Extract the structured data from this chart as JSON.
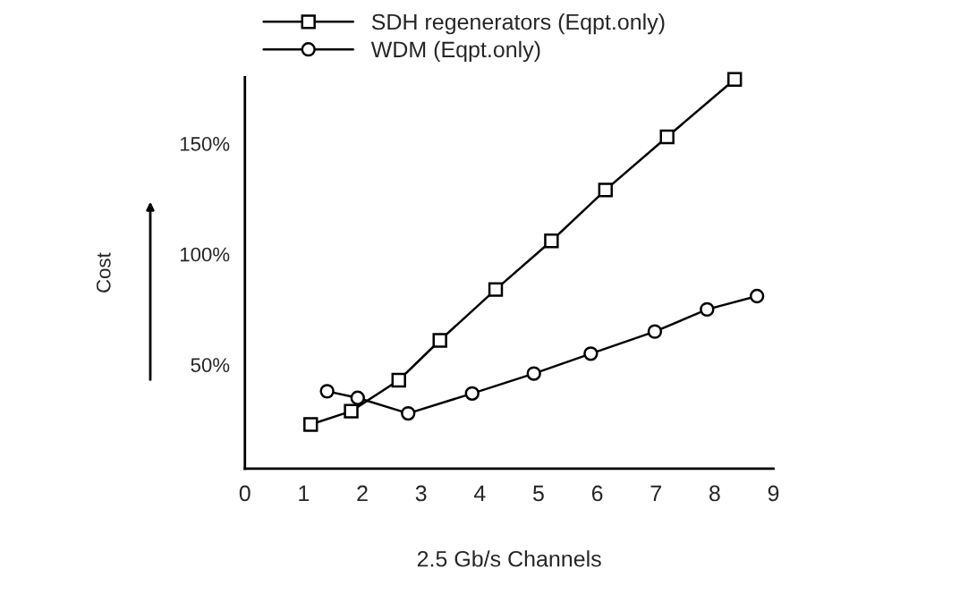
{
  "chart_data": {
    "type": "line",
    "xlabel": "2.5 Gb/s Channels",
    "ylabel": "Cost",
    "xlim": [
      0,
      9
    ],
    "xticks": [
      0,
      1,
      2,
      3,
      4,
      5,
      6,
      7,
      8,
      9
    ],
    "ylim": [
      3,
      180
    ],
    "yticks": [
      {
        "value": 50,
        "label": "50%"
      },
      {
        "value": 100,
        "label": "100%"
      },
      {
        "value": 150,
        "label": "150%"
      }
    ],
    "legend": "top",
    "grid": false,
    "line_style": "solid",
    "series": [
      {
        "name": "SDH regenerators (Eqpt.only)",
        "color": "#000000",
        "marker": "square",
        "x": [
          1.12,
          1.81,
          2.62,
          3.32,
          4.27,
          5.22,
          6.14,
          7.19,
          8.34
        ],
        "values": [
          23,
          29,
          43,
          61,
          84,
          106,
          129,
          153,
          179
        ]
      },
      {
        "name": "WDM (Eqpt.only)",
        "color": "#000000",
        "marker": "circle",
        "x": [
          1.4,
          1.92,
          2.78,
          3.87,
          4.92,
          5.89,
          6.98,
          7.87,
          8.72
        ],
        "values": [
          38,
          35,
          28,
          37,
          46,
          55,
          65,
          75,
          81
        ]
      }
    ]
  }
}
